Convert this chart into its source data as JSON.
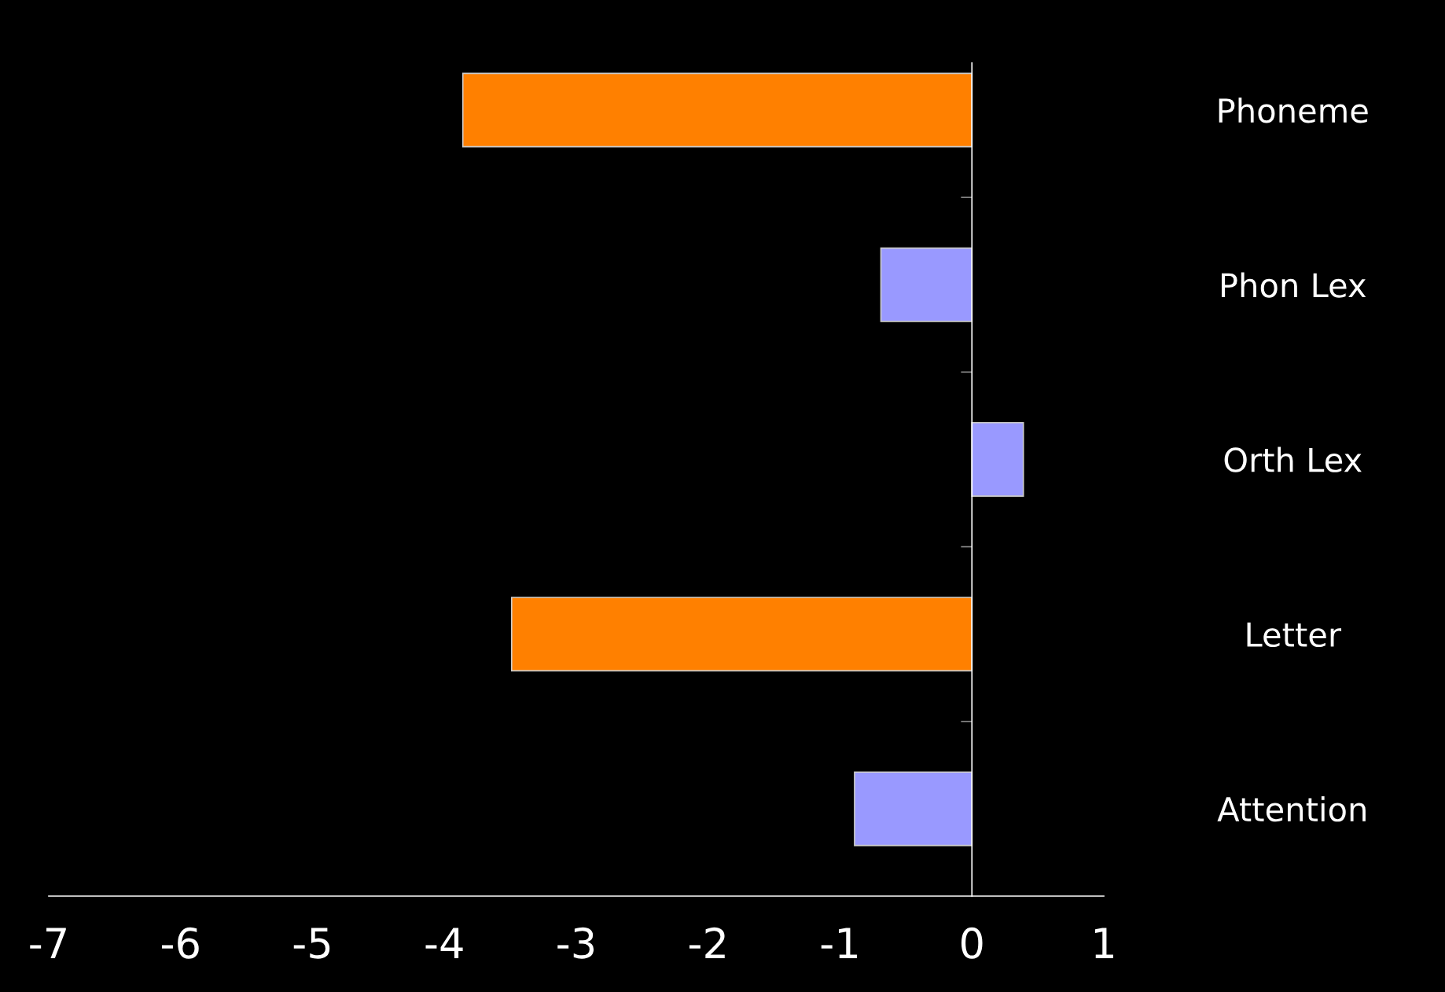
{
  "chart_data": {
    "type": "bar",
    "orientation": "horizontal",
    "categories": [
      "Phoneme",
      "Phon Lex",
      "Orth Lex",
      "Letter",
      "Attention"
    ],
    "values": [
      -3.86,
      -0.69,
      0.39,
      -3.49,
      -0.89
    ],
    "colors": [
      "#ff8000",
      "#9999ff",
      "#9999ff",
      "#ff8000",
      "#9999ff"
    ],
    "xlim": [
      -7,
      1
    ],
    "xticks": [
      -7,
      -6,
      -5,
      -4,
      -3,
      -2,
      -1,
      0,
      1
    ]
  }
}
